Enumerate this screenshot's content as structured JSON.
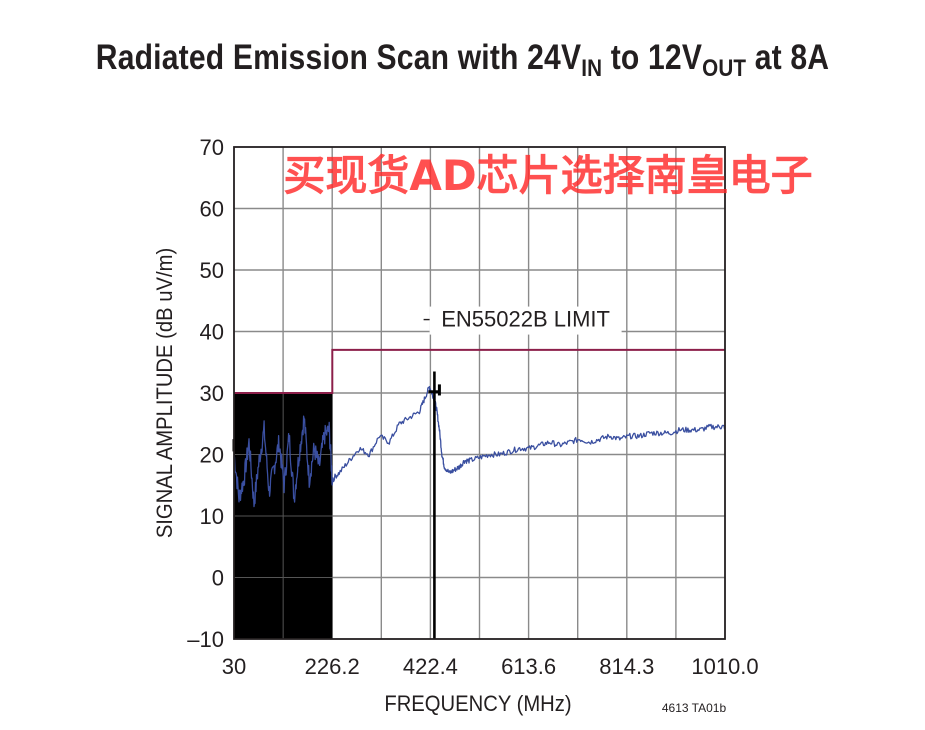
{
  "title": {
    "prefix": "Radiated Emission Scan with 24V",
    "sub1": "IN",
    "middle": " to 12V",
    "sub2": "OUT",
    "suffix": " at 8A"
  },
  "watermark": "买现货AD芯片选择南皇电子",
  "figure_code": "4613 TA01b",
  "colors": {
    "trace": "#3a4fa0",
    "limit": "#8c1f4a",
    "grid": "#8a8a8a",
    "text": "#231f20",
    "watermark": "#ff2a2a"
  },
  "chart_data": {
    "type": "line",
    "title": "Radiated Emission Scan with 24VIN to 12VOUT at 8A",
    "xlabel": "FREQUENCY (MHz)",
    "ylabel": "SIGNAL AMPLITUDE (dB uV/m)",
    "xlim": [
      30,
      1010
    ],
    "ylim": [
      -10,
      70
    ],
    "grid": true,
    "x_ticks": [
      "30",
      "226.2",
      "422.4",
      "613.6",
      "814.3",
      "1010.0"
    ],
    "y_ticks": [
      "70",
      "60",
      "50",
      "40",
      "30",
      "20",
      "10",
      "0",
      "–10"
    ],
    "y_tick_values": [
      70,
      60,
      50,
      40,
      30,
      20,
      10,
      0,
      -10
    ],
    "annotations": [
      {
        "text": "EN55022B LIMIT",
        "x": 612,
        "y": 40.8
      }
    ],
    "series": [
      {
        "name": "EN55022B LIMIT",
        "x": [
          30,
          226.2,
          226.2,
          1010
        ],
        "y": [
          30,
          30,
          37,
          37
        ]
      },
      {
        "x": [
          30,
          40,
          50,
          60,
          70,
          80,
          90,
          100,
          110,
          120,
          130,
          140,
          150,
          160,
          170,
          180,
          190,
          200,
          210,
          220,
          226,
          240,
          260,
          280,
          300,
          320,
          340,
          360,
          380,
          400,
          410,
          420,
          425,
          430,
          435,
          440,
          445,
          450,
          460,
          470,
          480,
          490,
          500,
          520,
          540,
          560,
          580,
          600,
          620,
          640,
          660,
          680,
          700,
          720,
          740,
          760,
          780,
          800,
          820,
          840,
          860,
          880,
          900,
          920,
          940,
          960,
          980,
          1000,
          1010
        ],
        "y": [
          20,
          13,
          16,
          22,
          12,
          19,
          24,
          14,
          18,
          22,
          15,
          23,
          13,
          20,
          26,
          16,
          21,
          18,
          23,
          24,
          16,
          17,
          19,
          21,
          20,
          23,
          22,
          25,
          26,
          27,
          29,
          31,
          30,
          29,
          27,
          24,
          20,
          18,
          17,
          17.5,
          18,
          19,
          19,
          19.5,
          20,
          20,
          20.5,
          21,
          21,
          21.5,
          22,
          21.5,
          22,
          22.5,
          22,
          22.5,
          23,
          22.5,
          23,
          23,
          23.5,
          23.5,
          23.5,
          24,
          24,
          24,
          24.5,
          24.5,
          24.5
        ]
      }
    ]
  }
}
